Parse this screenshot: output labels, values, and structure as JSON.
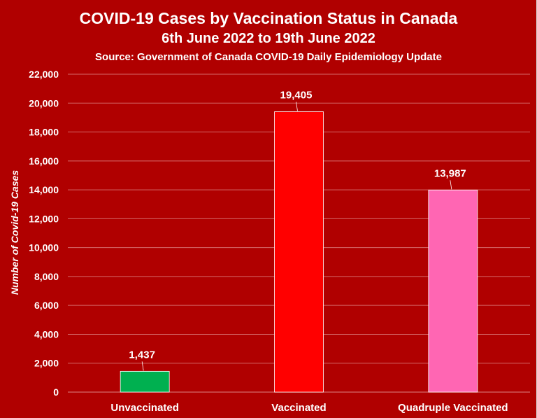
{
  "chart_data": {
    "type": "bar",
    "title": "COVID-19 Cases by Vaccination Status in Canada",
    "subtitle": "6th June 2022 to 19th June 2022",
    "source": "Source: Government of Canada COVID-19 Daily Epidemiology Update",
    "xlabel": "",
    "ylabel": "Number of Covid-19 Cases",
    "ylim": [
      0,
      22000
    ],
    "ytick_values": [
      0,
      2000,
      4000,
      6000,
      8000,
      10000,
      12000,
      14000,
      16000,
      18000,
      20000,
      22000
    ],
    "ytick_labels": [
      "0",
      "2,000",
      "4,000",
      "6,000",
      "8,000",
      "10,000",
      "12,000",
      "14,000",
      "16,000",
      "18,000",
      "20,000",
      "22,000"
    ],
    "categories": [
      "Unvaccinated",
      "Vaccinated",
      "Quadruple Vaccinated"
    ],
    "values": [
      1437,
      19405,
      13987
    ],
    "value_labels": [
      "1,437",
      "19,405",
      "13,987"
    ],
    "bar_colors": [
      "#00b050",
      "#ff0000",
      "#ff66b3"
    ],
    "grid": true,
    "legend": "none",
    "colors": {
      "background": "#b00000",
      "gridline": "#d46a6a",
      "text": "#ffffff"
    }
  }
}
